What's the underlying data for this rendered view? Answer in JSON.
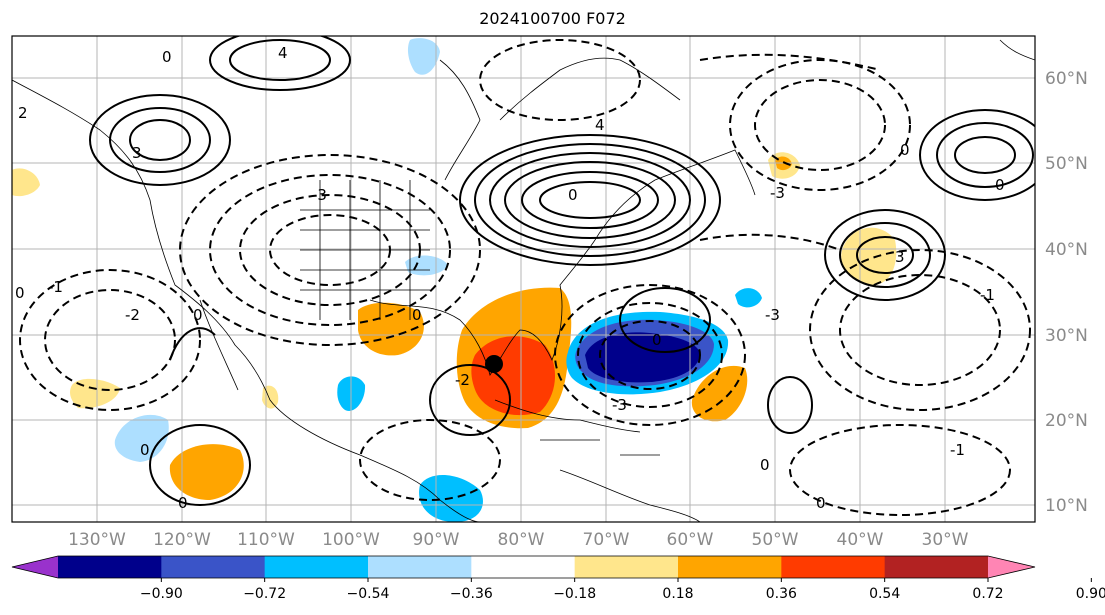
{
  "title": "2024100700 F072",
  "map": {
    "lat_labels": [
      "60°N",
      "50°N",
      "40°N",
      "30°N",
      "20°N",
      "10°N"
    ],
    "lon_labels": [
      "130°W",
      "120°W",
      "110°W",
      "100°W",
      "90°W",
      "80°W",
      "70°W",
      "60°W",
      "50°W",
      "40°W",
      "30°W"
    ],
    "contour_labels": [
      "0",
      "-1",
      "-2",
      "-3",
      "2",
      "3",
      "4"
    ],
    "marker": "storm-center-dot"
  },
  "colorbar": {
    "ticks": [
      "−0.90",
      "−0.72",
      "−0.54",
      "−0.36",
      "−0.18",
      "0.18",
      "0.36",
      "0.54",
      "0.72",
      "0.90"
    ],
    "colors": [
      "#9932CC",
      "#00008B",
      "#3A54C8",
      "#00BFFF",
      "#ADDFFF",
      "#FFFFFF",
      "#FFE68C",
      "#FFA500",
      "#FF3B00",
      "#B22222",
      "#FF85B4"
    ]
  }
}
